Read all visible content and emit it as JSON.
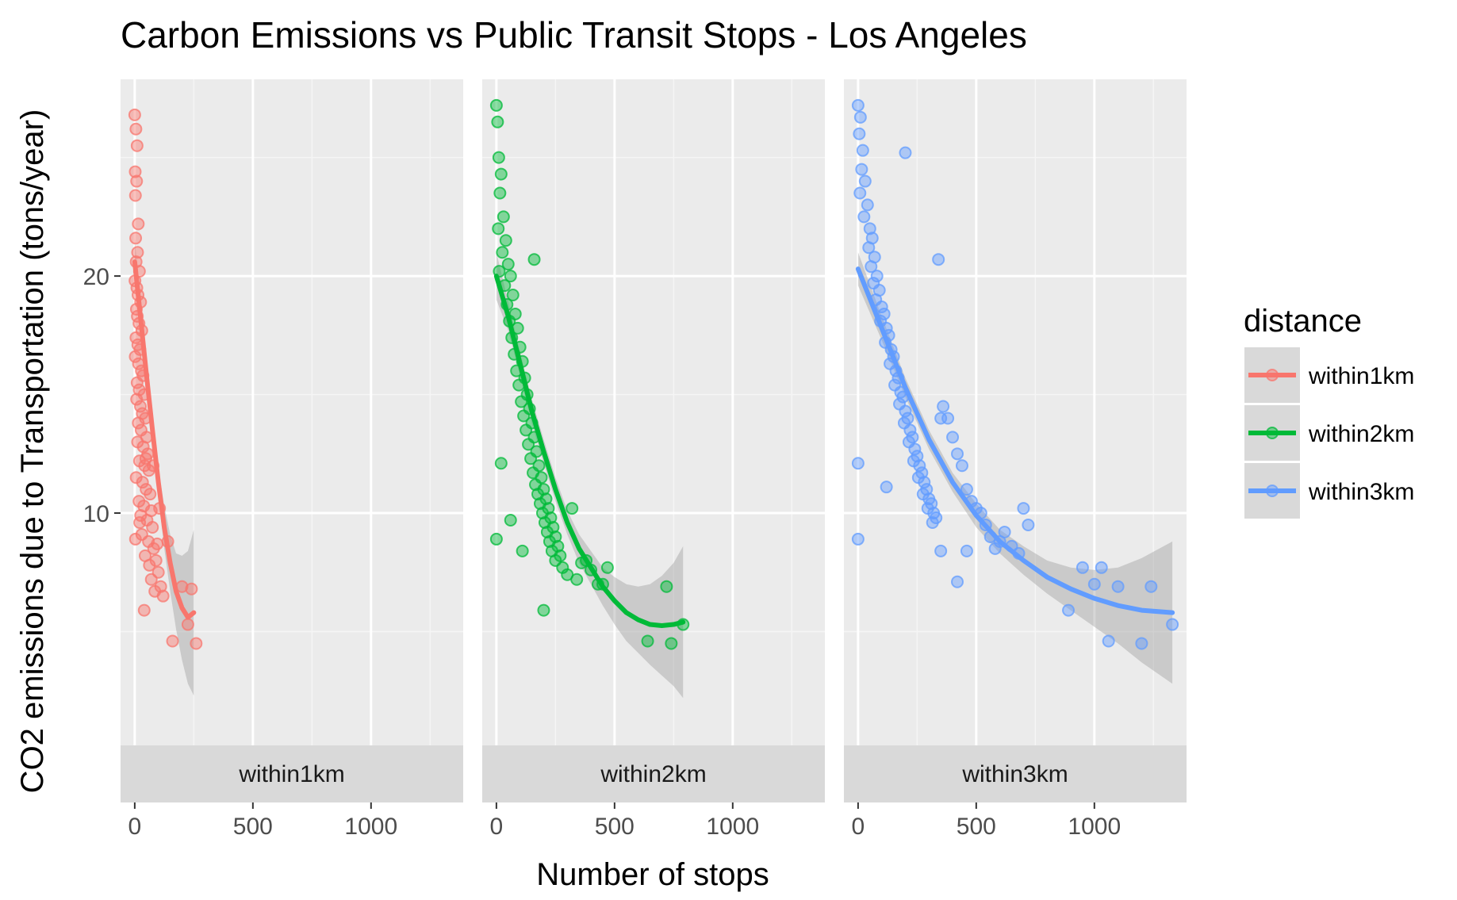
{
  "chart_data": {
    "type": "scatter",
    "title": "Carbon Emissions vs Public Transit Stops - Los Angeles",
    "xlabel": "Number of stops",
    "ylabel": "CO2 emissions due to Transportation (tons/year)",
    "xlim": [
      -60,
      1390
    ],
    "ylim": [
      0.2,
      28.3
    ],
    "x_ticks": [
      0,
      500,
      1000
    ],
    "y_ticks": [
      10,
      20
    ],
    "grid": true,
    "smooth": "loess with grey confidence band",
    "legend": {
      "title": "distance",
      "position": "right",
      "entries": [
        "within1km",
        "within2km",
        "within3km"
      ]
    },
    "facets": [
      "within1km",
      "within2km",
      "within3km"
    ],
    "series": [
      {
        "name": "within1km",
        "color": "#F8766D",
        "x": [
          0,
          5,
          10,
          2,
          8,
          3,
          15,
          4,
          12,
          6,
          20,
          1,
          9,
          14,
          25,
          7,
          11,
          18,
          30,
          5,
          13,
          22,
          2,
          16,
          28,
          35,
          10,
          19,
          40,
          8,
          24,
          32,
          45,
          15,
          27,
          50,
          12,
          36,
          55,
          20,
          42,
          60,
          6,
          33,
          48,
          65,
          18,
          38,
          70,
          25,
          52,
          75,
          30,
          58,
          80,
          44,
          90,
          62,
          100,
          70,
          110,
          85,
          120,
          40,
          95,
          140,
          160,
          200,
          225,
          240,
          260,
          3,
          21,
          47,
          78,
          105
        ],
        "y": [
          26.8,
          26.2,
          25.5,
          24.4,
          24.0,
          23.4,
          22.2,
          21.6,
          21.0,
          20.6,
          20.2,
          19.8,
          19.5,
          19.2,
          18.9,
          18.6,
          18.3,
          18.0,
          17.7,
          17.4,
          17.1,
          16.9,
          16.6,
          16.3,
          16.0,
          15.8,
          15.5,
          15.2,
          15.0,
          14.8,
          14.5,
          14.2,
          14.0,
          13.8,
          13.5,
          13.2,
          13.0,
          12.8,
          12.5,
          12.2,
          12.0,
          11.8,
          11.5,
          11.3,
          11.0,
          10.8,
          10.5,
          10.3,
          10.1,
          9.9,
          9.7,
          9.4,
          9.1,
          8.8,
          8.5,
          8.2,
          8.0,
          7.8,
          7.5,
          7.2,
          6.9,
          6.7,
          6.5,
          5.9,
          8.7,
          8.8,
          4.6,
          6.9,
          5.3,
          6.8,
          4.5,
          8.9,
          9.6,
          12.3,
          12.0,
          10.2
        ],
        "fit_x": [
          0,
          25,
          50,
          75,
          100,
          125,
          150,
          175,
          200,
          225,
          250
        ],
        "fit_y": [
          20.6,
          18.2,
          15.8,
          13.5,
          11.3,
          9.4,
          7.9,
          6.7,
          6.0,
          5.6,
          5.8
        ],
        "band_half_width": [
          1.0,
          0.7,
          0.5,
          0.5,
          0.6,
          0.9,
          1.2,
          1.6,
          2.2,
          2.8,
          3.5
        ]
      },
      {
        "name": "within2km",
        "color": "#00BA38",
        "x": [
          0,
          5,
          10,
          20,
          15,
          30,
          8,
          40,
          25,
          50,
          12,
          60,
          35,
          70,
          45,
          80,
          55,
          90,
          65,
          100,
          75,
          110,
          85,
          120,
          95,
          130,
          105,
          140,
          115,
          150,
          125,
          160,
          135,
          170,
          145,
          180,
          155,
          190,
          165,
          200,
          175,
          210,
          185,
          220,
          195,
          230,
          205,
          240,
          215,
          250,
          225,
          260,
          235,
          270,
          250,
          280,
          300,
          320,
          340,
          360,
          380,
          400,
          430,
          450,
          470,
          640,
          720,
          740,
          790,
          0,
          20,
          60,
          110,
          160,
          200
        ],
        "y": [
          27.2,
          26.5,
          25.0,
          24.3,
          23.5,
          22.5,
          22.0,
          21.5,
          21.0,
          20.5,
          20.2,
          20.0,
          19.6,
          19.2,
          18.8,
          18.4,
          18.1,
          17.8,
          17.4,
          17.0,
          16.7,
          16.4,
          16.0,
          15.7,
          15.4,
          15.0,
          14.7,
          14.4,
          14.1,
          13.8,
          13.5,
          13.2,
          12.9,
          12.6,
          12.3,
          12.0,
          11.7,
          11.5,
          11.2,
          11.0,
          10.8,
          10.6,
          10.4,
          10.2,
          10.0,
          9.8,
          9.6,
          9.4,
          9.2,
          9.0,
          8.8,
          8.6,
          8.4,
          8.2,
          8.0,
          7.7,
          7.4,
          10.2,
          7.2,
          7.9,
          8.0,
          7.6,
          7.0,
          7.0,
          7.7,
          4.6,
          6.9,
          4.5,
          5.3,
          8.9,
          12.1,
          9.7,
          8.4,
          20.7,
          5.9
        ],
        "fit_x": [
          0,
          50,
          100,
          150,
          200,
          250,
          300,
          350,
          400,
          450,
          500,
          550,
          600,
          650,
          700,
          750,
          790
        ],
        "fit_y": [
          20.0,
          18.3,
          16.3,
          14.3,
          12.6,
          11.0,
          9.6,
          8.5,
          7.7,
          6.9,
          6.3,
          5.8,
          5.5,
          5.3,
          5.25,
          5.3,
          5.4
        ],
        "band_half_width": [
          1.0,
          0.6,
          0.5,
          0.5,
          0.5,
          0.5,
          0.5,
          0.6,
          0.7,
          0.8,
          1.0,
          1.2,
          1.4,
          1.7,
          2.1,
          2.6,
          3.2
        ]
      },
      {
        "name": "within3km",
        "color": "#619CFF",
        "x": [
          0,
          10,
          5,
          20,
          15,
          30,
          8,
          40,
          25,
          50,
          60,
          45,
          70,
          55,
          80,
          65,
          90,
          75,
          100,
          110,
          95,
          120,
          130,
          115,
          140,
          150,
          135,
          160,
          170,
          155,
          180,
          190,
          175,
          200,
          210,
          195,
          220,
          230,
          215,
          240,
          250,
          235,
          260,
          270,
          255,
          280,
          290,
          275,
          300,
          310,
          295,
          320,
          330,
          315,
          340,
          350,
          360,
          380,
          400,
          420,
          440,
          460,
          480,
          500,
          520,
          540,
          560,
          580,
          600,
          620,
          650,
          680,
          700,
          720,
          890,
          950,
          1000,
          1030,
          1060,
          1100,
          1200,
          1240,
          1330,
          0,
          0,
          120,
          200,
          350,
          420,
          460
        ],
        "y": [
          27.2,
          26.7,
          26.0,
          25.3,
          24.5,
          24.0,
          23.5,
          23.0,
          22.5,
          22.0,
          21.6,
          21.2,
          20.8,
          20.4,
          20.0,
          19.7,
          19.4,
          19.0,
          18.7,
          18.4,
          18.1,
          17.8,
          17.5,
          17.2,
          16.9,
          16.6,
          16.3,
          16.0,
          15.7,
          15.4,
          15.1,
          14.9,
          14.6,
          14.3,
          14.0,
          13.8,
          13.5,
          13.2,
          13.0,
          12.7,
          12.4,
          12.2,
          12.0,
          11.7,
          11.5,
          11.3,
          11.0,
          10.8,
          10.6,
          10.4,
          10.2,
          10.0,
          9.8,
          9.6,
          20.7,
          14.0,
          14.5,
          14.0,
          13.2,
          12.5,
          12.0,
          11.0,
          10.5,
          10.2,
          10.0,
          9.5,
          9.0,
          8.5,
          8.8,
          9.2,
          8.6,
          8.3,
          10.2,
          9.5,
          5.9,
          7.7,
          7.0,
          7.7,
          4.6,
          6.9,
          4.5,
          6.9,
          5.3,
          12.1,
          8.9,
          11.1,
          25.2,
          8.4,
          7.1,
          8.4
        ],
        "fit_x": [
          0,
          100,
          200,
          300,
          400,
          500,
          600,
          700,
          800,
          900,
          1000,
          1100,
          1200,
          1330
        ],
        "fit_y": [
          20.3,
          17.8,
          15.3,
          13.1,
          11.3,
          9.9,
          8.8,
          8.0,
          7.3,
          6.8,
          6.4,
          6.1,
          5.9,
          5.8
        ],
        "band_half_width": [
          0.7,
          0.5,
          0.4,
          0.4,
          0.4,
          0.5,
          0.5,
          0.6,
          0.7,
          0.9,
          1.2,
          1.6,
          2.2,
          3.0
        ]
      }
    ]
  }
}
